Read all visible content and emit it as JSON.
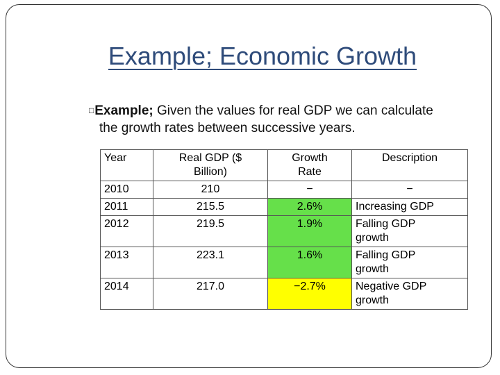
{
  "title": "Example; Economic Growth",
  "bullet": {
    "glyph": "□",
    "bold": "Example;",
    "line1": " Given the values for real GDP we can calculate",
    "line2": "the growth rates between successive years."
  },
  "table": {
    "headers": {
      "year": "Year",
      "gdp_line1": "Real GDP ($",
      "gdp_line2": "Billion)",
      "rate_line1": "Growth",
      "rate_line2": "Rate",
      "description": "Description"
    },
    "rows": [
      {
        "year": "2010",
        "gdp": "210",
        "rate": "−",
        "desc_line1": "−",
        "desc_line2": ""
      },
      {
        "year": "2011",
        "gdp": "215.5",
        "rate": "2.6%",
        "desc_line1": "Increasing GDP",
        "desc_line2": ""
      },
      {
        "year": "2012",
        "gdp": "219.5",
        "rate": "1.9%",
        "desc_line1": "Falling GDP",
        "desc_line2": "growth"
      },
      {
        "year": "2013",
        "gdp": "223.1",
        "rate": "1.6%",
        "desc_line1": "Falling GDP",
        "desc_line2": "growth"
      },
      {
        "year": "2014",
        "gdp": "217.0",
        "rate": "−2.7%",
        "desc_line1": "Negative GDP",
        "desc_line2": "growth"
      }
    ]
  },
  "colors": {
    "title": "#2e4b7a",
    "positive_growth": "#66e04a",
    "negative_growth": "#ffff00"
  }
}
